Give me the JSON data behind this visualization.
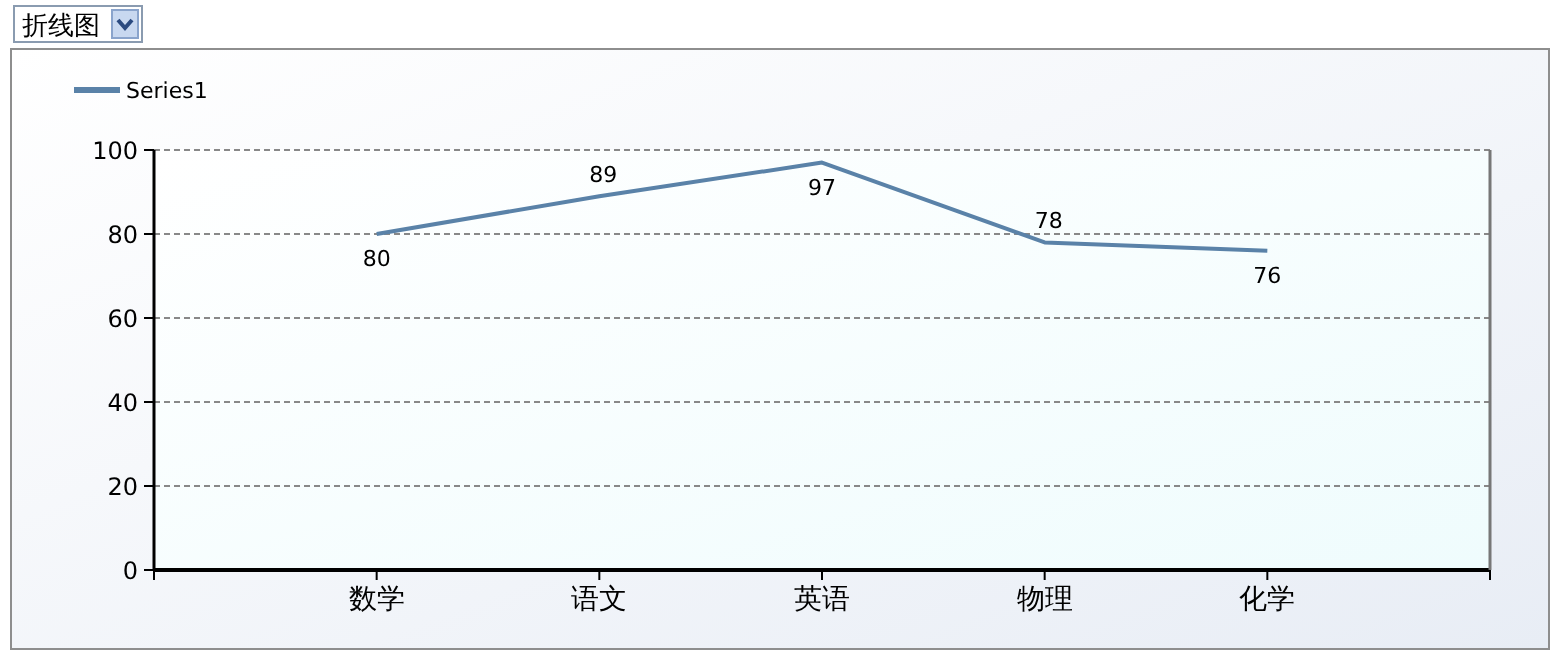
{
  "chart_data": {
    "type": "line",
    "categories": [
      "数学",
      "语文",
      "英语",
      "物理",
      "化学"
    ],
    "series": [
      {
        "name": "Series1",
        "color": "#5a82a8",
        "values": [
          80,
          89,
          97,
          78,
          76
        ]
      }
    ],
    "ylim": [
      0,
      100
    ],
    "yticks": [
      0,
      20,
      40,
      60,
      80,
      100
    ],
    "grid": "y",
    "legend": "top left",
    "data_labels": true,
    "marker": "none",
    "line_style": "solid",
    "annotations": [
      "折线图"
    ]
  }
}
